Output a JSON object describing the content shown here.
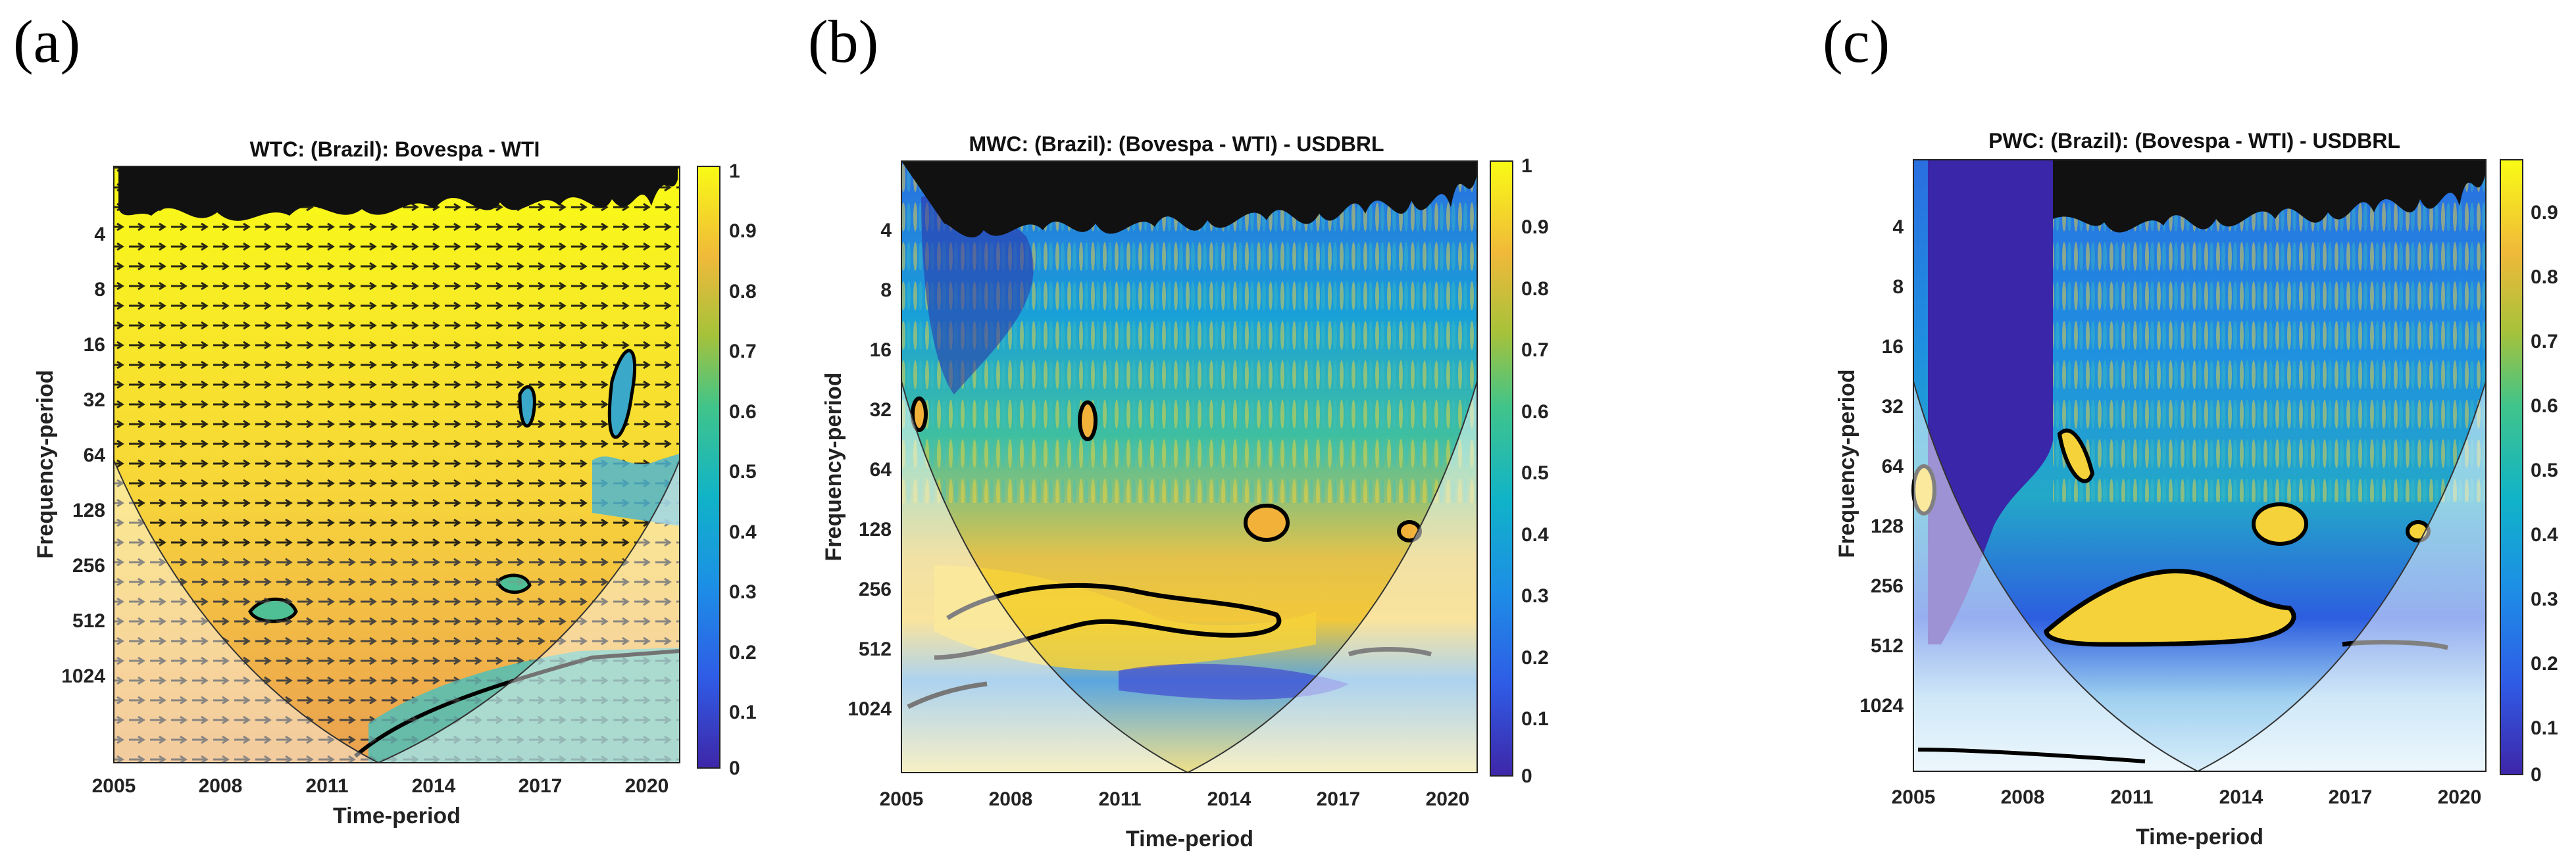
{
  "panels": [
    {
      "label": "(a)",
      "title": "WTC: (Brazil): Bovespa - WTI",
      "xlabel": "Time-period",
      "ylabel": "Frequency-period"
    },
    {
      "label": "(b)",
      "title": "MWC: (Brazil): (Bovespa - WTI) - USDBRL",
      "xlabel": "Time-period",
      "ylabel": "Frequency-period"
    },
    {
      "label": "(c)",
      "title": "PWC: (Brazil): (Bovespa - WTI) - USDBRL",
      "xlabel": "Time-period",
      "ylabel": "Frequency-period"
    }
  ],
  "chart_data": [
    {
      "type": "heatmap",
      "title": "WTC: (Brazil): Bovespa - WTI",
      "xlabel": "Time-period",
      "ylabel": "Frequency-period",
      "xlim": [
        2005,
        2021
      ],
      "x_ticks": [
        "2005",
        "2008",
        "2011",
        "2014",
        "2017",
        "2020"
      ],
      "y_ticks": [
        "4",
        "8",
        "16",
        "32",
        "64",
        "128",
        "256",
        "512",
        "1024"
      ],
      "colorbar": {
        "range": [
          0,
          1
        ],
        "ticks": [
          "0",
          "0.1",
          "0.2",
          "0.3",
          "0.4",
          "0.5",
          "0.6",
          "0.7",
          "0.8",
          "0.9",
          "1"
        ]
      },
      "description_values": {
        "dominant_coherence": 0.95,
        "phase_arrows": "right"
      }
    },
    {
      "type": "heatmap",
      "title": "MWC: (Brazil): (Bovespa - WTI) - USDBRL",
      "xlabel": "Time-period",
      "ylabel": "Frequency-period",
      "xlim": [
        2005,
        2021
      ],
      "x_ticks": [
        "2005",
        "2008",
        "2011",
        "2014",
        "2017",
        "2020"
      ],
      "y_ticks": [
        "4",
        "8",
        "16",
        "32",
        "64",
        "128",
        "256",
        "512",
        "1024"
      ],
      "colorbar": {
        "range": [
          0,
          1
        ],
        "ticks": [
          "0",
          "0.1",
          "0.2",
          "0.3",
          "0.4",
          "0.5",
          "0.6",
          "0.7",
          "0.8",
          "0.9",
          "1"
        ]
      }
    },
    {
      "type": "heatmap",
      "title": "PWC: (Brazil): (Bovespa - WTI) - USDBRL",
      "xlabel": "Time-period",
      "ylabel": "Frequency-period",
      "xlim": [
        2005,
        2021
      ],
      "x_ticks": [
        "2005",
        "2008",
        "2011",
        "2014",
        "2017",
        "2020"
      ],
      "y_ticks": [
        "4",
        "8",
        "16",
        "32",
        "64",
        "128",
        "256",
        "512",
        "1024"
      ],
      "colorbar": {
        "range": [
          0,
          0.95
        ],
        "ticks": [
          "0",
          "0.1",
          "0.2",
          "0.3",
          "0.4",
          "0.5",
          "0.6",
          "0.7",
          "0.8",
          "0.9"
        ]
      }
    }
  ]
}
